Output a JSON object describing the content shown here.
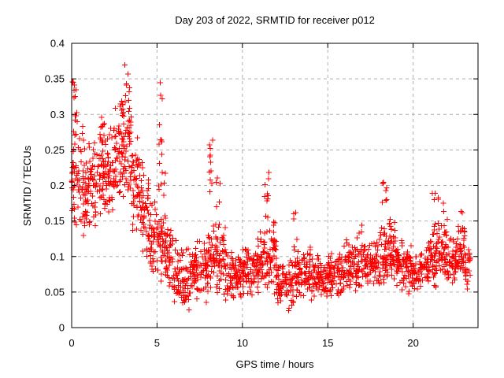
{
  "title": "Day 203 of 2022, SRMTID for receiver p012",
  "colors": {
    "marker": "#ff0000",
    "grid": "#b0b0b0",
    "axis": "#000000",
    "background": "#ffffff"
  },
  "chart_data": {
    "type": "scatter",
    "title": "Day 203 of 2022, SRMTID for receiver p012",
    "xlabel": "GPS time / hours",
    "ylabel": "SRMTID / TECUs",
    "xlim": [
      0,
      23.8
    ],
    "ylim": [
      0,
      0.4
    ],
    "xticks": [
      0,
      5,
      10,
      15,
      20
    ],
    "yticks": [
      0,
      0.05,
      0.1,
      0.15,
      0.2,
      0.25,
      0.3,
      0.35,
      0.4
    ],
    "grid": "dashed",
    "legend": "none",
    "marker": "plus",
    "marker_color": "#ff0000",
    "seed": 20220722,
    "description": "Dense red plus-marker scatter: high SRMTID 0.15-0.37 TECUs during hours 0-5 decaying to a baseline band of 0.04-0.13 TECUs for hours 5-23.3, with transient spikes near hours 8.1 (to 0.27), 11.4 (to 0.22), 18.3 (to 0.21), 21.3 (to 0.20) and 22.8 (to 0.17); minimum values ~0.02 near hours 6.5-13.",
    "bands": [
      [
        0,
        0.5,
        0.13,
        0.3,
        46
      ],
      [
        0.5,
        1,
        0.12,
        0.27,
        46
      ],
      [
        1,
        1.5,
        0.13,
        0.28,
        46
      ],
      [
        1.5,
        2,
        0.14,
        0.3,
        46
      ],
      [
        2,
        2.5,
        0.15,
        0.29,
        46
      ],
      [
        2.5,
        3,
        0.16,
        0.33,
        46
      ],
      [
        3,
        3.5,
        0.16,
        0.35,
        48
      ],
      [
        3.5,
        4,
        0.12,
        0.27,
        44
      ],
      [
        4,
        4.5,
        0.09,
        0.22,
        44
      ],
      [
        4.5,
        5,
        0.07,
        0.19,
        42
      ],
      [
        5,
        5.5,
        0.06,
        0.17,
        42
      ],
      [
        5.5,
        6,
        0.05,
        0.15,
        42
      ],
      [
        6,
        6.5,
        0.03,
        0.13,
        42
      ],
      [
        6.5,
        7,
        0.02,
        0.12,
        42
      ],
      [
        7,
        7.5,
        0.03,
        0.13,
        42
      ],
      [
        7.5,
        8,
        0.03,
        0.14,
        42
      ],
      [
        8,
        8.5,
        0.04,
        0.15,
        42
      ],
      [
        8.5,
        9,
        0.04,
        0.16,
        42
      ],
      [
        9,
        9.5,
        0.03,
        0.12,
        42
      ],
      [
        9.5,
        10,
        0.04,
        0.11,
        42
      ],
      [
        10,
        10.5,
        0.04,
        0.12,
        42
      ],
      [
        10.5,
        11,
        0.04,
        0.13,
        42
      ],
      [
        11,
        11.5,
        0.05,
        0.14,
        42
      ],
      [
        11.5,
        12,
        0.04,
        0.15,
        42
      ],
      [
        12,
        12.5,
        0.03,
        0.1,
        40
      ],
      [
        12.5,
        13,
        0.02,
        0.1,
        40
      ],
      [
        13,
        13.5,
        0.03,
        0.12,
        40
      ],
      [
        13.5,
        14,
        0.03,
        0.12,
        40
      ],
      [
        14,
        14.5,
        0.03,
        0.11,
        40
      ],
      [
        14.5,
        15,
        0.04,
        0.1,
        40
      ],
      [
        15,
        15.5,
        0.04,
        0.11,
        40
      ],
      [
        15.5,
        16,
        0.04,
        0.12,
        40
      ],
      [
        16,
        16.5,
        0.05,
        0.13,
        40
      ],
      [
        16.5,
        17,
        0.04,
        0.13,
        40
      ],
      [
        17,
        17.5,
        0.05,
        0.12,
        40
      ],
      [
        17.5,
        18,
        0.05,
        0.13,
        40
      ],
      [
        18,
        18.5,
        0.05,
        0.15,
        40
      ],
      [
        18.5,
        19,
        0.06,
        0.16,
        40
      ],
      [
        19,
        19.5,
        0.05,
        0.13,
        40
      ],
      [
        19.5,
        20,
        0.04,
        0.12,
        40
      ],
      [
        20,
        20.5,
        0.05,
        0.11,
        40
      ],
      [
        20.5,
        21,
        0.05,
        0.12,
        40
      ],
      [
        21,
        21.5,
        0.05,
        0.14,
        40
      ],
      [
        21.5,
        22,
        0.06,
        0.15,
        40
      ],
      [
        22,
        22.5,
        0.05,
        0.13,
        40
      ],
      [
        22.5,
        23,
        0.06,
        0.16,
        42
      ],
      [
        23,
        23.35,
        0.05,
        0.12,
        26
      ]
    ],
    "clusters": [
      [
        0.15,
        0.12,
        0.28,
        0.35,
        10
      ],
      [
        0.5,
        0.2,
        0.25,
        0.31,
        6
      ],
      [
        1.85,
        0.15,
        0.24,
        0.3,
        9
      ],
      [
        2.95,
        0.12,
        0.27,
        0.335,
        8
      ],
      [
        3.25,
        0.15,
        0.27,
        0.37,
        12
      ],
      [
        4.0,
        0.15,
        0.22,
        0.27,
        5
      ],
      [
        5.2,
        0.12,
        0.24,
        0.35,
        9
      ],
      [
        5.3,
        0.2,
        0.16,
        0.24,
        8
      ],
      [
        8.15,
        0.12,
        0.16,
        0.27,
        11
      ],
      [
        8.55,
        0.15,
        0.14,
        0.22,
        7
      ],
      [
        11.4,
        0.15,
        0.13,
        0.22,
        11
      ],
      [
        11.85,
        0.1,
        0.12,
        0.16,
        4
      ],
      [
        13.1,
        0.1,
        0.12,
        0.165,
        4
      ],
      [
        16.9,
        0.12,
        0.11,
        0.15,
        5
      ],
      [
        18.3,
        0.18,
        0.12,
        0.21,
        11
      ],
      [
        18.75,
        0.12,
        0.11,
        0.17,
        6
      ],
      [
        21.3,
        0.18,
        0.12,
        0.203,
        10
      ],
      [
        21.85,
        0.18,
        0.11,
        0.19,
        8
      ],
      [
        22.85,
        0.2,
        0.1,
        0.165,
        8
      ]
    ]
  }
}
